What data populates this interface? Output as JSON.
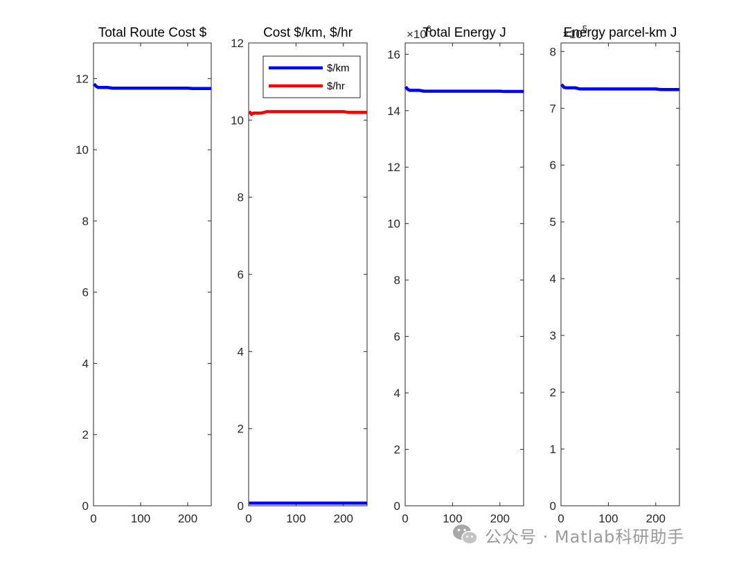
{
  "chart_data": [
    {
      "type": "line",
      "title": "Total Route Cost $",
      "xlim": [
        0,
        250
      ],
      "ylim": [
        0,
        13
      ],
      "xticks": [
        0,
        100,
        200
      ],
      "yticks": [
        0,
        2,
        4,
        6,
        8,
        10,
        12
      ],
      "exponent": "",
      "legend": null,
      "series": [
        {
          "color": "#0000ff",
          "x": [
            1,
            3,
            6,
            10,
            15,
            22,
            30,
            40,
            50,
            100,
            150,
            200,
            210,
            250
          ],
          "y": [
            11.85,
            11.82,
            11.78,
            11.75,
            11.75,
            11.75,
            11.75,
            11.73,
            11.73,
            11.73,
            11.73,
            11.73,
            11.72,
            11.72
          ]
        }
      ]
    },
    {
      "type": "line",
      "title": "Cost $/km, $/hr",
      "xlim": [
        0,
        250
      ],
      "ylim": [
        0,
        12
      ],
      "xticks": [
        0,
        100,
        200
      ],
      "yticks": [
        0,
        2,
        4,
        6,
        8,
        10,
        12
      ],
      "exponent": "",
      "legend": {
        "location": "top-right"
      },
      "series": [
        {
          "name": "$/km",
          "color": "#0000ff",
          "x": [
            1,
            50,
            100,
            150,
            200,
            250
          ],
          "y": [
            0.07,
            0.07,
            0.07,
            0.07,
            0.07,
            0.07
          ]
        },
        {
          "name": "$/hr",
          "color": "#ff0000",
          "x": [
            1,
            3,
            6,
            10,
            15,
            22,
            30,
            38,
            45,
            100,
            150,
            200,
            210,
            250
          ],
          "y": [
            10.22,
            10.2,
            10.15,
            10.18,
            10.18,
            10.18,
            10.19,
            10.22,
            10.22,
            10.22,
            10.22,
            10.22,
            10.2,
            10.2
          ]
        }
      ]
    },
    {
      "type": "line",
      "title": "Total Energy J",
      "xlim": [
        0,
        250
      ],
      "ylim": [
        0,
        16.4
      ],
      "xticks": [
        0,
        100,
        200
      ],
      "yticks": [
        0,
        2,
        4,
        6,
        8,
        10,
        12,
        14,
        16
      ],
      "exponent": "6",
      "legend": null,
      "series": [
        {
          "color": "#0000ff",
          "x": [
            1,
            3,
            6,
            10,
            15,
            22,
            30,
            40,
            50,
            100,
            150,
            200,
            210,
            250
          ],
          "y": [
            14.85,
            14.8,
            14.75,
            14.72,
            14.72,
            14.72,
            14.72,
            14.69,
            14.69,
            14.69,
            14.69,
            14.69,
            14.68,
            14.68
          ]
        }
      ]
    },
    {
      "type": "line",
      "title": "Energy parcel-km J",
      "xlim": [
        0,
        250
      ],
      "ylim": [
        0,
        8.15
      ],
      "xticks": [
        0,
        100,
        200
      ],
      "yticks": [
        0,
        1,
        2,
        3,
        4,
        5,
        6,
        7,
        8
      ],
      "exponent": "5",
      "legend": null,
      "series": [
        {
          "color": "#0000ff",
          "x": [
            1,
            3,
            6,
            10,
            15,
            22,
            30,
            40,
            50,
            100,
            150,
            200,
            210,
            250
          ],
          "y": [
            7.42,
            7.4,
            7.37,
            7.36,
            7.36,
            7.36,
            7.36,
            7.34,
            7.34,
            7.34,
            7.34,
            7.34,
            7.33,
            7.33
          ]
        }
      ]
    }
  ],
  "watermark": {
    "icon": "wechat-icon",
    "text": "公众号 · Matlab科研助手"
  }
}
